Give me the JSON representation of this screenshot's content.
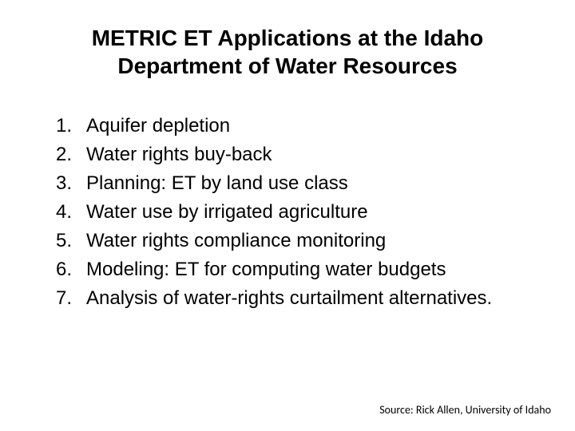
{
  "slide": {
    "title": "METRIC ET Applications at the Idaho Department of Water Resources",
    "title_fontsize": 28,
    "title_fontweight": "bold",
    "title_color": "#000000",
    "background_color": "#ffffff",
    "list": {
      "type": "ordered",
      "item_fontsize": 24,
      "item_color": "#000000",
      "item_lineheight": 1.5,
      "items": [
        {
          "number": "1.",
          "text": "Aquifer depletion"
        },
        {
          "number": "2.",
          "text": "Water rights buy-back"
        },
        {
          "number": "3.",
          "text": "Planning:  ET by land use class"
        },
        {
          "number": "4.",
          "text": "Water use by irrigated agriculture"
        },
        {
          "number": "5.",
          "text": "Water rights compliance monitoring"
        },
        {
          "number": "6.",
          "text": "Modeling: ET for computing water budgets"
        },
        {
          "number": "7.",
          "text": "Analysis of water-rights curtailment alternatives."
        }
      ]
    },
    "source": {
      "text": "Source: Rick Allen, University of Idaho",
      "fontsize": 14,
      "color": "#000000"
    }
  }
}
